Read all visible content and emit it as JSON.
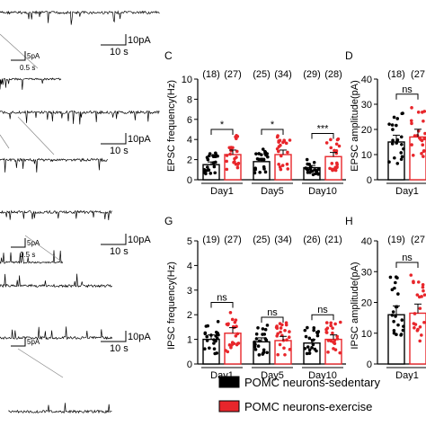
{
  "traces": {
    "scale_bars": [
      {
        "amp": "10pA",
        "time": "10 s"
      },
      {
        "amp": "5pA",
        "time": "0.5 s"
      },
      {
        "amp": "10pA",
        "time": "10 s"
      },
      {
        "amp": "10pA",
        "time": "10 s"
      },
      {
        "amp": "5pA",
        "time": "0.5 s"
      },
      {
        "amp": "10pA",
        "time": "10 s"
      },
      {
        "amp": "5pA",
        "time": ""
      }
    ]
  },
  "legend": {
    "items": [
      {
        "label": "POMC neurons-sedentary",
        "color": "#000000"
      },
      {
        "label": "POMC neurons-exercise",
        "color": "#e8262b"
      }
    ]
  },
  "colors": {
    "sedentary": "#000000",
    "exercise": "#e8262b"
  },
  "chart_data": [
    {
      "panel": "C",
      "type": "bar",
      "ylabel": "EPSC frequency(Hz)",
      "ylim": [
        0,
        10
      ],
      "yticks": [
        "0",
        "2",
        "4",
        "6",
        "8",
        "10"
      ],
      "categories": [
        "Day1",
        "Day5",
        "Day10"
      ],
      "series": [
        {
          "values": [
            1.5,
            1.8,
            1.2
          ]
        },
        {
          "values": [
            2.5,
            2.5,
            2.3
          ]
        }
      ],
      "n_labels": [
        [
          "(18)",
          "(27)"
        ],
        [
          "(25)",
          "(34)"
        ],
        [
          "(29)",
          "(28)"
        ]
      ],
      "significance": [
        "*",
        "*",
        "***"
      ]
    },
    {
      "panel": "D",
      "type": "bar",
      "ylabel": "EPSC amplitude(pA)",
      "ylim": [
        0,
        40
      ],
      "yticks": [
        "0",
        "10",
        "20",
        "30",
        "40"
      ],
      "categories": [
        "Day1"
      ],
      "series": [
        {
          "values": [
            15
          ]
        },
        {
          "values": [
            17
          ]
        }
      ],
      "n_labels": [
        [
          "(18)",
          "(27"
        ]
      ],
      "significance": [
        "ns"
      ]
    },
    {
      "panel": "G",
      "type": "bar",
      "ylabel": "IPSC frequency(Hz)",
      "ylim": [
        0,
        5
      ],
      "yticks": [
        "0",
        "1",
        "2",
        "3",
        "4",
        "5"
      ],
      "categories": [
        "Day1",
        "Day5",
        "Day10"
      ],
      "series": [
        {
          "values": [
            1.0,
            0.9,
            0.85
          ]
        },
        {
          "values": [
            1.25,
            0.95,
            1.0
          ]
        }
      ],
      "n_labels": [
        [
          "(19)",
          "(27)"
        ],
        [
          "(25)",
          "(34)"
        ],
        [
          "(26)",
          "(21)"
        ]
      ],
      "significance": [
        "ns",
        "ns",
        "ns"
      ]
    },
    {
      "panel": "H",
      "type": "bar",
      "ylabel": "IPSC amplitude(pA)",
      "ylim": [
        0,
        40
      ],
      "yticks": [
        "0",
        "10",
        "20",
        "30",
        "40"
      ],
      "categories": [
        "Day1"
      ],
      "series": [
        {
          "values": [
            16
          ]
        },
        {
          "values": [
            16.5
          ]
        }
      ],
      "n_labels": [
        [
          "(19)",
          "(27"
        ]
      ],
      "significance": [
        "ns"
      ]
    }
  ]
}
